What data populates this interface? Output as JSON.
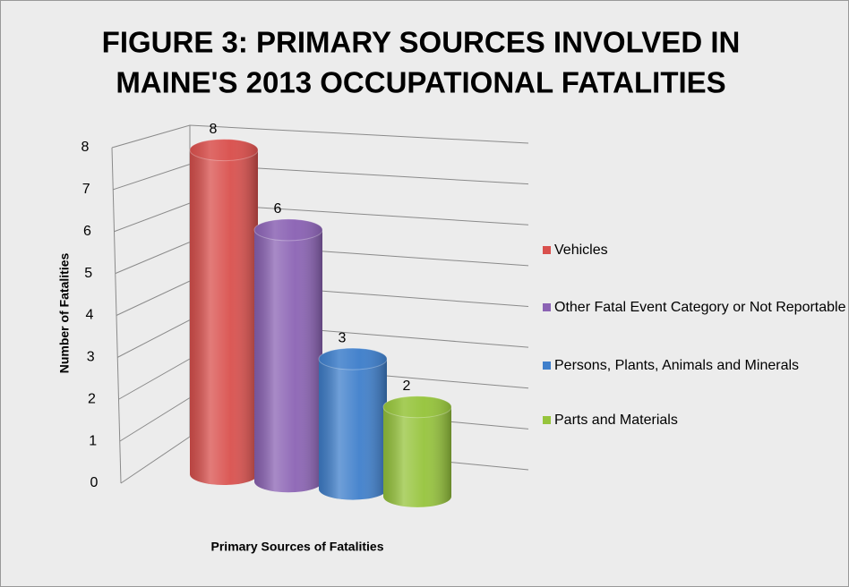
{
  "chart_data": {
    "type": "bar3d",
    "title": "FIGURE 3: PRIMARY SOURCES INVOLVED IN MAINE'S 2013 OCCUPATIONAL FATALITIES",
    "title_lines": [
      "FIGURE 3: PRIMARY SOURCES INVOLVED IN",
      "MAINE'S 2013 OCCUPATIONAL FATALITIES"
    ],
    "xlabel": "Primary Sources of Fatalities",
    "ylabel": "Number of Fatalities",
    "ylim": [
      0,
      8
    ],
    "yticks": [
      0,
      1,
      2,
      3,
      4,
      5,
      6,
      7,
      8
    ],
    "grid": true,
    "legend": "right",
    "series": [
      {
        "name": "Vehicles",
        "color": "#d9504d",
        "values": [
          8
        ]
      },
      {
        "name": "Other Fatal Event Category or Not Reportable",
        "color": "#8b63b4",
        "values": [
          6
        ]
      },
      {
        "name": "Persons, Plants, Animals and Minerals",
        "color": "#3f7fcb",
        "values": [
          3
        ]
      },
      {
        "name": "Parts and Materials",
        "color": "#96c43c",
        "values": [
          2
        ]
      }
    ]
  }
}
